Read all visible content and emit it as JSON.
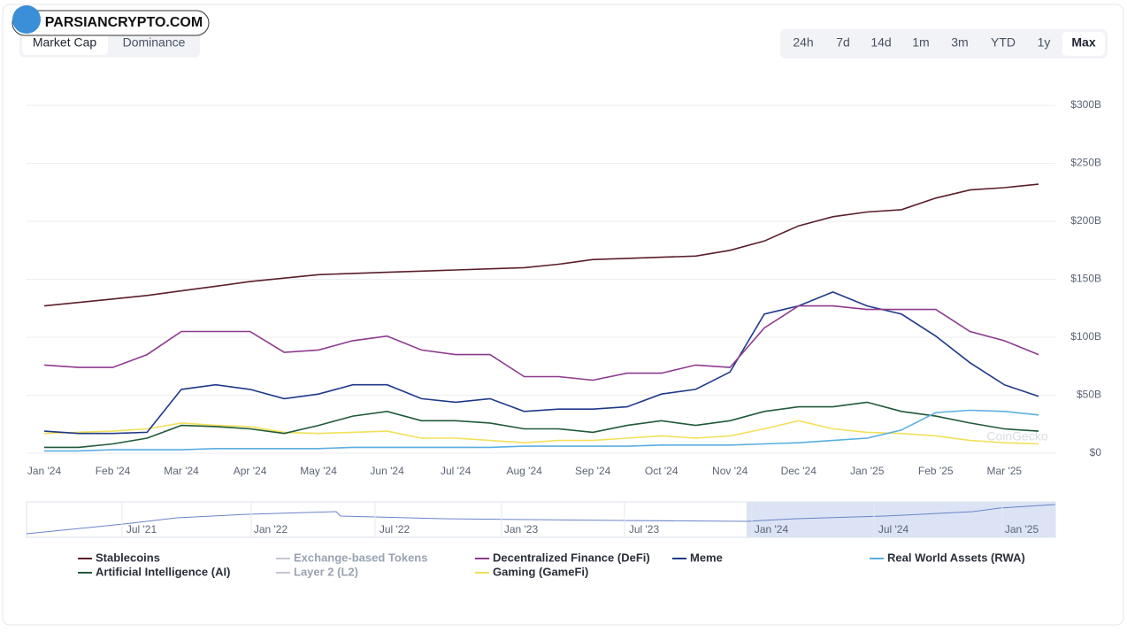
{
  "logo": "PARSIANCRYPTO.COM",
  "tabs": [
    "Market Cap",
    "Dominance"
  ],
  "ranges": [
    "24h",
    "7d",
    "14d",
    "1m",
    "3m",
    "YTD",
    "1y",
    "Max"
  ],
  "active_range": 7,
  "watermark": "CoinGecko",
  "navigator_labels": [
    "Jul '21",
    "Jan '22",
    "Jul '22",
    "Jan '23",
    "Jul '23",
    "Jan '24",
    "Jul '24",
    "Jan '25"
  ],
  "chart_data": {
    "type": "line",
    "categories": [
      "Jan '24",
      null,
      "Feb '24",
      null,
      "Mar '24",
      null,
      "Apr '24",
      null,
      "May '24",
      null,
      "Jun '24",
      null,
      "Jul '24",
      null,
      "Aug '24",
      null,
      "Sep '24",
      null,
      "Oct '24",
      null,
      "Nov '24",
      null,
      "Dec '24",
      null,
      "Jan '25",
      null,
      "Feb '25",
      null,
      "Mar '25",
      null
    ],
    "ylim": [
      0,
      300
    ],
    "yticks": [
      {
        "value": 0,
        "label": "$0"
      },
      {
        "value": 50,
        "label": "$50B"
      },
      {
        "value": 100,
        "label": "$100B"
      },
      {
        "value": 150,
        "label": "$150B"
      },
      {
        "value": 200,
        "label": "$200B"
      },
      {
        "value": 250,
        "label": "$250B"
      },
      {
        "value": 300,
        "label": "$300B"
      }
    ],
    "grid": true,
    "series": [
      {
        "name": "Stablecoins",
        "color": "#5a1e2b",
        "values": [
          127,
          130,
          133,
          136,
          140,
          144,
          148,
          151,
          154,
          155,
          156,
          157,
          158,
          159,
          160,
          163,
          167,
          168,
          169,
          170,
          175,
          183,
          196,
          204,
          208,
          210,
          220,
          227,
          229,
          232
        ]
      },
      {
        "name": "Decentralized Finance (DeFi)",
        "color": "#8e3a8e",
        "values": [
          76,
          74,
          74,
          85,
          105,
          105,
          105,
          87,
          89,
          97,
          101,
          89,
          85,
          85,
          66,
          66,
          63,
          69,
          69,
          76,
          74,
          108,
          127,
          127,
          124,
          124,
          124,
          105,
          97,
          85
        ]
      },
      {
        "name": "Meme",
        "color": "#1f3a8a",
        "values": [
          19,
          17,
          17,
          18,
          55,
          59,
          55,
          47,
          51,
          59,
          59,
          47,
          44,
          47,
          36,
          38,
          38,
          40,
          51,
          55,
          70,
          120,
          127,
          139,
          127,
          120,
          101,
          78,
          59,
          49
        ]
      },
      {
        "name": "Real World Assets (RWA)",
        "color": "#5aaee0",
        "values": [
          2,
          2,
          3,
          3,
          3,
          4,
          4,
          4,
          4,
          5,
          5,
          5,
          5,
          5,
          6,
          6,
          6,
          6,
          7,
          7,
          7,
          8,
          9,
          11,
          13,
          20,
          35,
          37,
          36,
          33
        ]
      },
      {
        "name": "Artificial Intelligence (AI)",
        "color": "#1f5a3a",
        "values": [
          5,
          5,
          8,
          13,
          24,
          23,
          21,
          17,
          24,
          32,
          36,
          28,
          28,
          26,
          21,
          21,
          18,
          24,
          28,
          24,
          28,
          36,
          40,
          40,
          44,
          36,
          32,
          26,
          21,
          19
        ]
      },
      {
        "name": "Gaming (GameFi)",
        "color": "#f2e05a",
        "values": [
          17,
          18,
          19,
          21,
          26,
          24,
          23,
          18,
          17,
          18,
          19,
          13,
          13,
          11,
          9,
          11,
          11,
          13,
          15,
          13,
          15,
          21,
          28,
          21,
          18,
          17,
          15,
          11,
          9,
          8
        ]
      }
    ],
    "hidden_series": [
      {
        "name": "Exchange-based Tokens",
        "color": "#c4c8d0"
      },
      {
        "name": "Layer 2 (L2)",
        "color": "#c4c8d0"
      }
    ]
  }
}
